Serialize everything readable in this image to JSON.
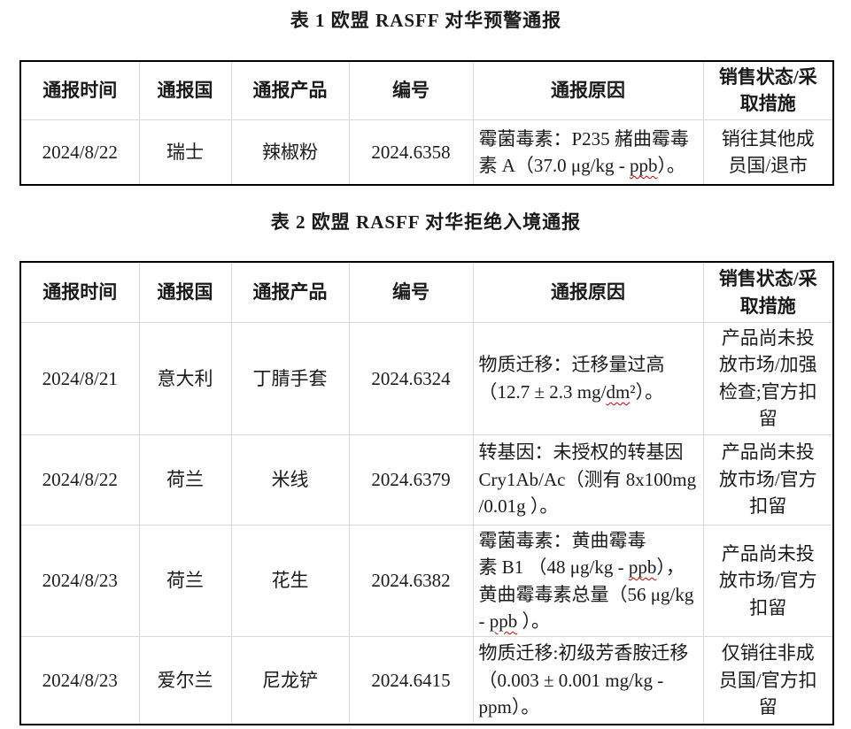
{
  "colors": {
    "text": "#1a1a1a",
    "outer_border": "#000000",
    "grid_line": "#d9d9d9",
    "spellcheck_underline": "#c00000"
  },
  "tables": [
    {
      "title": "表 1 欧盟 RASFF 对华预警通报",
      "headers": [
        "通报时间",
        "通报国",
        "通报产品",
        "编号",
        "通报原因",
        "销售状态/采取措施"
      ],
      "rows": [
        {
          "date": "2024/8/22",
          "country": "瑞士",
          "product": "辣椒粉",
          "number": "2024.6358",
          "reason_parts": [
            {
              "t": "霉菌毒素：P235 赭曲霉毒\n素 A（37.0 μg/kg - "
            },
            {
              "t": "ppb",
              "wavy": true
            },
            {
              "t": "）。"
            }
          ],
          "reason_text": "霉菌毒素：P235 赭曲霉毒素 A（37.0 μg/kg - ppb）。",
          "measures": "销往其他成\n员国/退市"
        }
      ]
    },
    {
      "title": "表 2 欧盟 RASFF 对华拒绝入境通报",
      "headers": [
        "通报时间",
        "通报国",
        "通报产品",
        "编号",
        "通报原因",
        "销售状态/采取措施"
      ],
      "rows": [
        {
          "date": "2024/8/21",
          "country": "意大利",
          "product": "丁腈手套",
          "number": "2024.6324",
          "reason_parts": [
            {
              "t": "物质迁移：迁移量过高\n（12.7 ± 2.3 mg/"
            },
            {
              "t": "dm",
              "wavy": true
            },
            {
              "t": "²）。"
            }
          ],
          "reason_text": "物质迁移：迁移量过高（12.7 ± 2.3 mg/dm²）。",
          "measures": "产品尚未投\n放市场/加强\n检查;官方扣\n留"
        },
        {
          "date": "2024/8/22",
          "country": "荷兰",
          "product": "米线",
          "number": "2024.6379",
          "reason_parts": [
            {
              "t": "转基因：未授权的转基因\nCry1Ab/Ac（测有 8x100mg\n/0.01g ）。"
            }
          ],
          "reason_text": "转基因：未授权的转基因 Cry1Ab/Ac（测有 8x100mg/0.01g）。",
          "measures": "产品尚未投\n放市场/官方\n扣留"
        },
        {
          "date": "2024/8/23",
          "country": "荷兰",
          "product": "花生",
          "number": "2024.6382",
          "reason_parts": [
            {
              "t": "霉菌毒素：黄曲霉毒\n素 B1 （48 μg/kg - "
            },
            {
              "t": "ppb",
              "wavy": true
            },
            {
              "t": "），\n黄曲霉毒素总量（56 μg/kg\n- "
            },
            {
              "t": "ppb",
              "wavy": true
            },
            {
              "t": " ）。"
            }
          ],
          "reason_text": "霉菌毒素：黄曲霉毒素 B1（48 μg/kg - ppb），黄曲霉毒素总量（56 μg/kg - ppb）。",
          "measures": "产品尚未投\n放市场/官方\n扣留"
        },
        {
          "date": "2024/8/23",
          "country": "爱尔兰",
          "product": "尼龙铲",
          "number": "2024.6415",
          "reason_parts": [
            {
              "t": "物质迁移:初级芳香胺迁移\n（0.003 ± 0.001 mg/kg -\nppm）。"
            }
          ],
          "reason_text": "物质迁移:初级芳香胺迁移（0.003 ± 0.001 mg/kg - ppm）。",
          "measures": "仅销往非成\n员国/官方扣\n留"
        }
      ]
    }
  ]
}
